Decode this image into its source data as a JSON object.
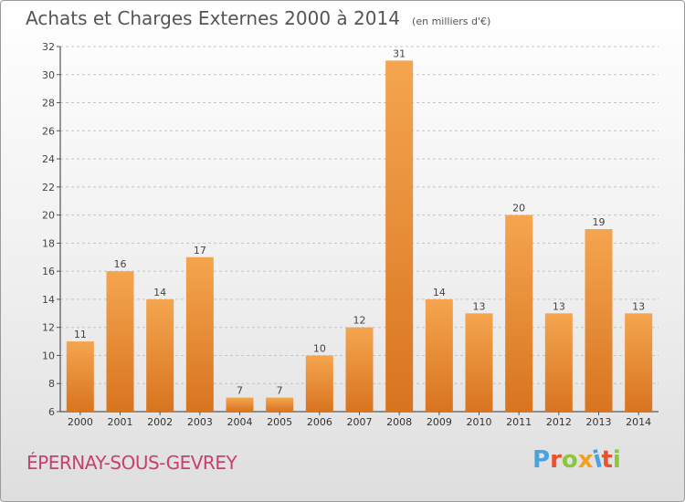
{
  "header": {
    "title": "Achats et Charges Externes 2000 à 2014",
    "unit": "(en milliers d'€)"
  },
  "footer": {
    "town": "ÉPERNAY-SOUS-GEVREY",
    "logo_text": "Proxiti"
  },
  "colors": {
    "bar_light": "#f5a54f",
    "bar_dark": "#d8741f",
    "town": "#c8406e",
    "logo": [
      "#4aa3df",
      "#e8522f",
      "#8cc63f",
      "#f2a01f",
      "#4aa3df",
      "#e8522f",
      "#8cc63f"
    ]
  },
  "chart_data": {
    "type": "bar",
    "title": "Achats et Charges Externes 2000 à 2014",
    "subtitle": "(en milliers d'€)",
    "categories": [
      "2000",
      "2001",
      "2002",
      "2003",
      "2004",
      "2005",
      "2006",
      "2007",
      "2008",
      "2009",
      "2010",
      "2011",
      "2012",
      "2013",
      "2014"
    ],
    "values": [
      11,
      16,
      14,
      17,
      7,
      7,
      10,
      12,
      31,
      14,
      13,
      20,
      13,
      19,
      13
    ],
    "ylim": [
      6,
      32
    ],
    "yticks": [
      6,
      8,
      10,
      12,
      14,
      16,
      18,
      20,
      22,
      24,
      26,
      28,
      30,
      32
    ],
    "grid": true,
    "legend": "none"
  }
}
